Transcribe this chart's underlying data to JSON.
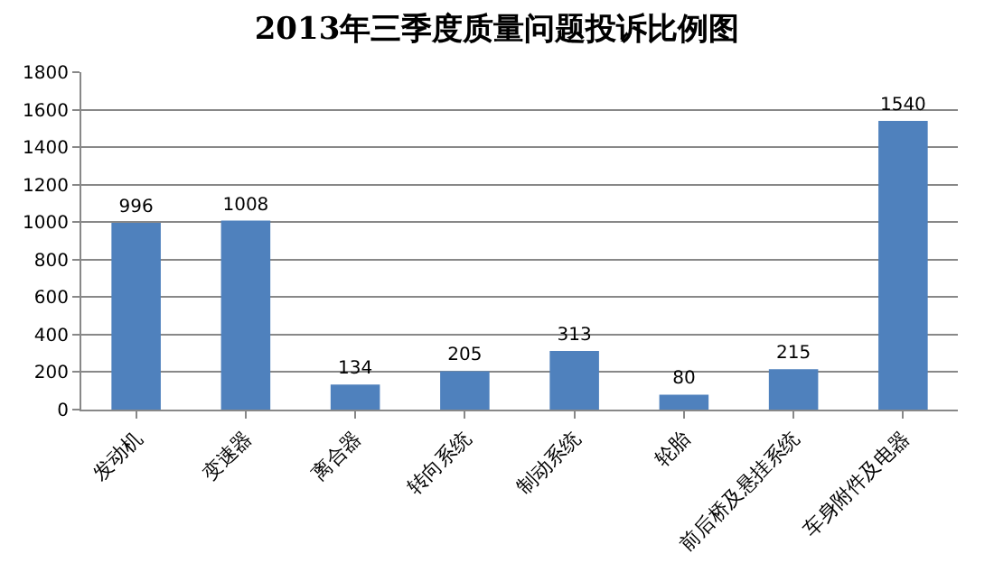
{
  "chart_data": {
    "type": "bar",
    "title": "2013年三季度质量问题投诉比例图",
    "categories": [
      "发动机",
      "变速器",
      "离合器",
      "转向系统",
      "制动系统",
      "轮胎",
      "前后桥及悬挂系统",
      "车身附件及电器"
    ],
    "values": [
      996,
      1008,
      134,
      205,
      313,
      80,
      215,
      1540
    ],
    "color": "#4f81bd",
    "ylim": [
      0,
      1800
    ],
    "yticks": [
      0,
      200,
      400,
      600,
      800,
      1000,
      1200,
      1400,
      1600,
      1800
    ],
    "grid": "y",
    "data_labels": true
  }
}
